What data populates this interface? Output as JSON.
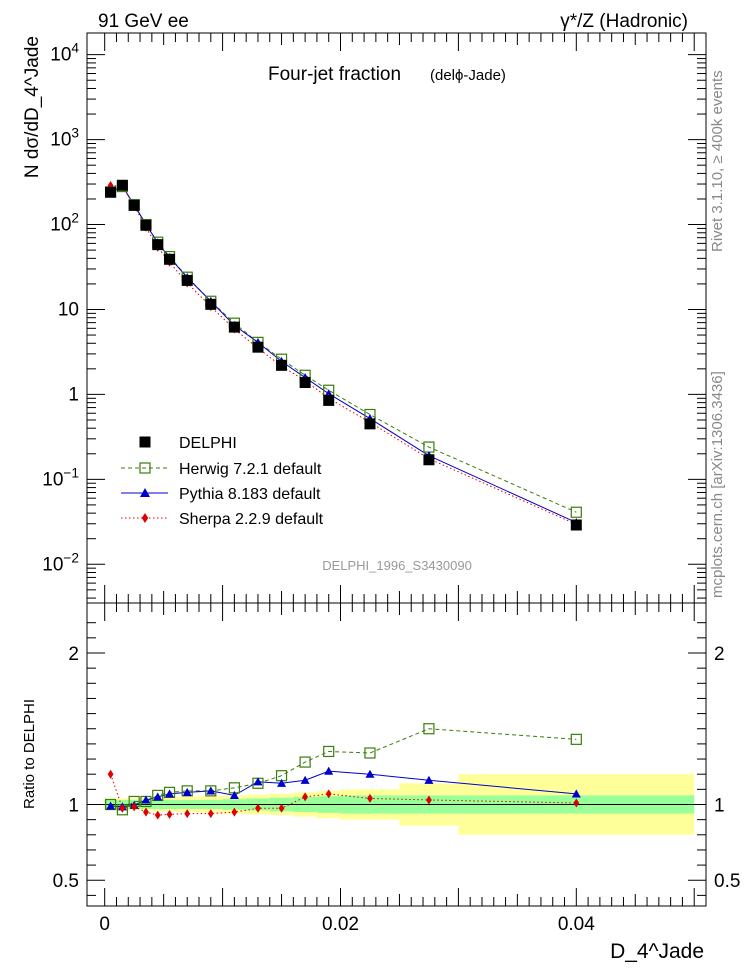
{
  "header": {
    "left_title": "91 GeV ee",
    "right_title": "γ*/Z (Hadronic)"
  },
  "side_text": {
    "rivet": "Rivet 3.1.10, ≥ 400k events",
    "mcplots": "mcplots.cern.ch [arXiv:1306.3436]"
  },
  "chart_data": [
    {
      "type": "scatter",
      "panel": "main",
      "title": "Four-jet fraction",
      "subtitle": "(delϕ-Jade)",
      "analysis_tag": "DELPHI_1996_S3430090",
      "xlabel": "D_4^Jade",
      "ylabel": "N dσ/dD_4^Jade",
      "yscale": "log",
      "xlim": [
        -0.0015,
        0.051
      ],
      "ylim": [
        0.0035,
        18000
      ],
      "y_tick_labels": [
        "10^4",
        "10^3",
        "10^2",
        "10",
        "1",
        "10^-1",
        "10^-2"
      ],
      "x": [
        0.0005,
        0.0015,
        0.0025,
        0.0035,
        0.0045,
        0.0055,
        0.007,
        0.009,
        0.011,
        0.013,
        0.015,
        0.017,
        0.019,
        0.0225,
        0.0275,
        0.04
      ],
      "series": [
        {
          "name": "DELPHI",
          "style": "data",
          "color": "#000000",
          "marker": "square-filled",
          "values": [
            240,
            290,
            168,
            98,
            58,
            39,
            22,
            11.5,
            6.2,
            3.6,
            2.2,
            1.38,
            0.85,
            0.45,
            0.17,
            0.029
          ]
        },
        {
          "name": "Herwig 7.2.1 default",
          "style": "dashed",
          "color": "#3a7d0a",
          "marker": "square-open",
          "values": [
            242,
            280,
            172,
            100,
            62,
            42,
            24,
            12.5,
            6.9,
            4.1,
            2.6,
            1.68,
            1.12,
            0.58,
            0.24,
            0.041
          ]
        },
        {
          "name": "Pythia 8.183 default",
          "style": "solid",
          "color": "#0000cc",
          "marker": "triangle",
          "values": [
            238,
            285,
            169,
            101,
            61,
            41,
            23.8,
            12.5,
            6.5,
            4.1,
            2.45,
            1.58,
            1.02,
            0.52,
            0.19,
            0.031
          ]
        },
        {
          "name": "Sherpa 2.2.9 default",
          "style": "dotted",
          "color": "#dd0000",
          "marker": "diamond",
          "values": [
            288,
            284,
            166,
            93,
            54,
            36,
            20.5,
            10.8,
            5.9,
            3.5,
            2.15,
            1.45,
            0.9,
            0.47,
            0.175,
            0.0295
          ]
        }
      ]
    },
    {
      "type": "line",
      "panel": "ratio",
      "ylabel": "Ratio to DELPHI",
      "xlabel": "D_4^Jade",
      "ylim": [
        0.33,
        2.33
      ],
      "y_tick_labels": [
        "2",
        "1",
        "0.5"
      ],
      "x_tick_labels": [
        "0",
        "0.02",
        "0.04"
      ],
      "x": [
        0.0005,
        0.0015,
        0.0025,
        0.0035,
        0.0045,
        0.0055,
        0.007,
        0.009,
        0.011,
        0.013,
        0.015,
        0.017,
        0.019,
        0.0225,
        0.0275,
        0.04
      ],
      "bands": [
        {
          "x_edges": [
            0,
            0.001,
            0.002,
            0.003,
            0.004,
            0.005,
            0.006,
            0.008,
            0.01,
            0.012,
            0.014,
            0.016,
            0.018,
            0.02,
            0.025,
            0.03,
            0.05
          ],
          "inner_half_width": [
            0.03,
            0.03,
            0.03,
            0.03,
            0.03,
            0.03,
            0.03,
            0.03,
            0.035,
            0.04,
            0.045,
            0.05,
            0.055,
            0.06,
            0.06,
            0.06
          ],
          "outer_half_width": [
            0.04,
            0.04,
            0.04,
            0.04,
            0.045,
            0.045,
            0.05,
            0.055,
            0.06,
            0.065,
            0.07,
            0.08,
            0.09,
            0.1,
            0.14,
            0.2
          ]
        }
      ],
      "band_colors": {
        "inner": "#99ff99",
        "outer": "#ffff99"
      },
      "series": [
        {
          "name": "Herwig 7.2.1 default",
          "color": "#3a7d0a",
          "values": [
            1.0,
            0.965,
            1.02,
            1.02,
            1.06,
            1.08,
            1.09,
            1.09,
            1.11,
            1.14,
            1.19,
            1.28,
            1.35,
            1.34,
            1.5,
            1.43
          ]
        },
        {
          "name": "Pythia 8.183 default",
          "color": "#0000cc",
          "values": [
            0.99,
            0.985,
            0.995,
            1.03,
            1.05,
            1.07,
            1.08,
            1.09,
            1.06,
            1.15,
            1.14,
            1.16,
            1.22,
            1.2,
            1.16,
            1.07
          ]
        },
        {
          "name": "Sherpa 2.2.9 default",
          "color": "#dd0000",
          "values": [
            1.2,
            0.975,
            0.985,
            0.95,
            0.93,
            0.935,
            0.94,
            0.94,
            0.95,
            0.975,
            0.975,
            1.05,
            1.07,
            1.04,
            1.03,
            1.01
          ]
        }
      ]
    }
  ]
}
